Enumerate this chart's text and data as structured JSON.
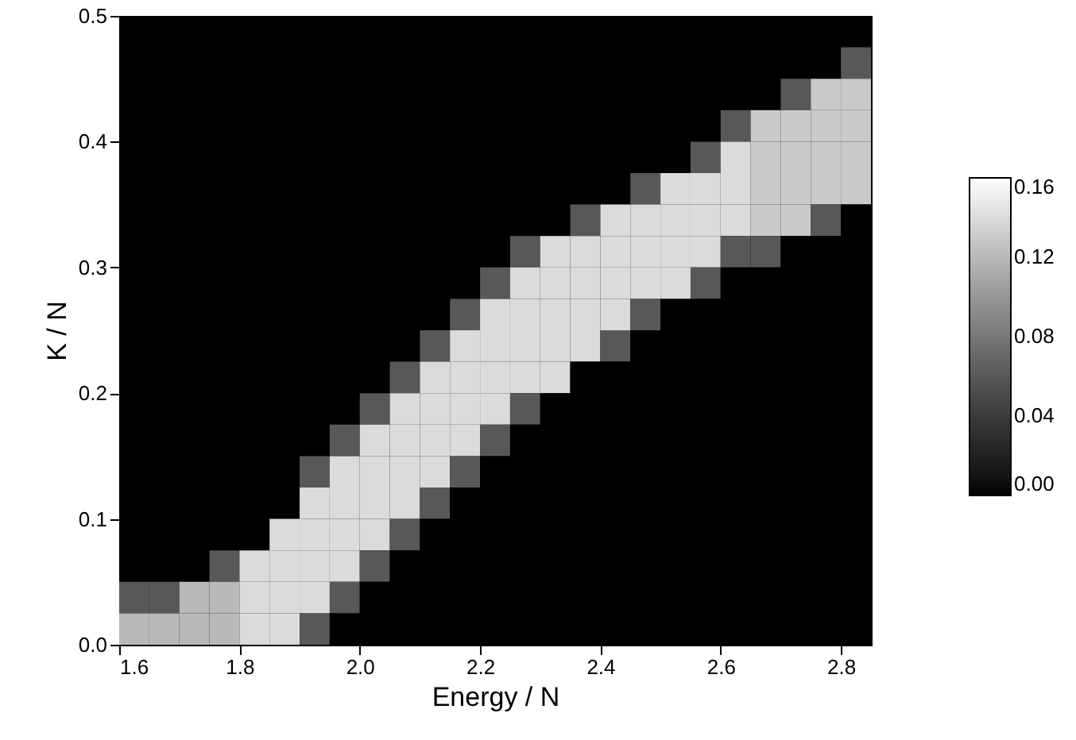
{
  "chart_data": {
    "type": "heatmap",
    "xlabel": "Energy / N",
    "ylabel": "K / N",
    "x": [
      1.625,
      1.675,
      1.725,
      1.775,
      1.825,
      1.875,
      1.925,
      1.975,
      2.025,
      2.075,
      2.125,
      2.175,
      2.225,
      2.275,
      2.325,
      2.375,
      2.425,
      2.475,
      2.525,
      2.575,
      2.625,
      2.675,
      2.725,
      2.775,
      2.825
    ],
    "y": [
      0.4875,
      0.4625,
      0.4375,
      0.4125,
      0.3875,
      0.3625,
      0.3375,
      0.3125,
      0.2875,
      0.2625,
      0.2375,
      0.2125,
      0.1875,
      0.1625,
      0.1375,
      0.1125,
      0.0875,
      0.0625,
      0.0375,
      0.0125
    ],
    "cells": [
      [
        0,
        0,
        0,
        0,
        0,
        0,
        0,
        0,
        0,
        0,
        0,
        0,
        0,
        0,
        0,
        0,
        0,
        0,
        0,
        0,
        0,
        0,
        0,
        0,
        0
      ],
      [
        0,
        0,
        0,
        0,
        0,
        0,
        0,
        0,
        0,
        0,
        0,
        0,
        0,
        0,
        0,
        0,
        0,
        0,
        0,
        0,
        0,
        0,
        0,
        0,
        0.06
      ],
      [
        0,
        0,
        0,
        0,
        0,
        0,
        0,
        0,
        0,
        0,
        0,
        0,
        0,
        0,
        0,
        0,
        0,
        0,
        0,
        0,
        0,
        0,
        0.06,
        0.13,
        0.13
      ],
      [
        0,
        0,
        0,
        0,
        0,
        0,
        0,
        0,
        0,
        0,
        0,
        0,
        0,
        0,
        0,
        0,
        0,
        0,
        0,
        0,
        0.06,
        0.13,
        0.13,
        0.13,
        0.13
      ],
      [
        0,
        0,
        0,
        0,
        0,
        0,
        0,
        0,
        0,
        0,
        0,
        0,
        0,
        0,
        0,
        0,
        0,
        0,
        0,
        0.06,
        0.14,
        0.13,
        0.13,
        0.13,
        0.13
      ],
      [
        0,
        0,
        0,
        0,
        0,
        0,
        0,
        0,
        0,
        0,
        0,
        0,
        0,
        0,
        0,
        0,
        0,
        0.06,
        0.14,
        0.14,
        0.14,
        0.13,
        0.13,
        0.13,
        0.13
      ],
      [
        0,
        0,
        0,
        0,
        0,
        0,
        0,
        0,
        0,
        0,
        0,
        0,
        0,
        0,
        0,
        0.06,
        0.14,
        0.14,
        0.14,
        0.14,
        0.14,
        0.13,
        0.13,
        0.06,
        0
      ],
      [
        0,
        0,
        0,
        0,
        0,
        0,
        0,
        0,
        0,
        0,
        0,
        0,
        0,
        0.06,
        0.14,
        0.14,
        0.14,
        0.14,
        0.14,
        0.14,
        0.06,
        0.06,
        0,
        0,
        0
      ],
      [
        0,
        0,
        0,
        0,
        0,
        0,
        0,
        0,
        0,
        0,
        0,
        0,
        0.06,
        0.14,
        0.14,
        0.14,
        0.14,
        0.14,
        0.14,
        0.06,
        0,
        0,
        0,
        0,
        0
      ],
      [
        0,
        0,
        0,
        0,
        0,
        0,
        0,
        0,
        0,
        0,
        0,
        0.06,
        0.14,
        0.14,
        0.14,
        0.14,
        0.14,
        0.06,
        0,
        0,
        0,
        0,
        0,
        0,
        0
      ],
      [
        0,
        0,
        0,
        0,
        0,
        0,
        0,
        0,
        0,
        0,
        0.06,
        0.14,
        0.14,
        0.14,
        0.14,
        0.14,
        0.06,
        0,
        0,
        0,
        0,
        0,
        0,
        0,
        0
      ],
      [
        0,
        0,
        0,
        0,
        0,
        0,
        0,
        0,
        0,
        0.06,
        0.14,
        0.14,
        0.14,
        0.14,
        0.14,
        0,
        0,
        0,
        0,
        0,
        0,
        0,
        0,
        0,
        0
      ],
      [
        0,
        0,
        0,
        0,
        0,
        0,
        0,
        0,
        0.06,
        0.14,
        0.14,
        0.14,
        0.14,
        0.06,
        0,
        0,
        0,
        0,
        0,
        0,
        0,
        0,
        0,
        0,
        0
      ],
      [
        0,
        0,
        0,
        0,
        0,
        0,
        0,
        0.06,
        0.14,
        0.14,
        0.14,
        0.14,
        0.06,
        0,
        0,
        0,
        0,
        0,
        0,
        0,
        0,
        0,
        0,
        0,
        0
      ],
      [
        0,
        0,
        0,
        0,
        0,
        0,
        0.06,
        0.14,
        0.14,
        0.14,
        0.14,
        0.06,
        0,
        0,
        0,
        0,
        0,
        0,
        0,
        0,
        0,
        0,
        0,
        0,
        0
      ],
      [
        0,
        0,
        0,
        0,
        0,
        0,
        0.14,
        0.14,
        0.14,
        0.14,
        0.06,
        0,
        0,
        0,
        0,
        0,
        0,
        0,
        0,
        0,
        0,
        0,
        0,
        0,
        0
      ],
      [
        0,
        0,
        0,
        0,
        0,
        0.14,
        0.14,
        0.14,
        0.14,
        0.06,
        0,
        0,
        0,
        0,
        0,
        0,
        0,
        0,
        0,
        0,
        0,
        0,
        0,
        0,
        0
      ],
      [
        0,
        0,
        0,
        0.06,
        0.14,
        0.14,
        0.14,
        0.14,
        0.06,
        0,
        0,
        0,
        0,
        0,
        0,
        0,
        0,
        0,
        0,
        0,
        0,
        0,
        0,
        0,
        0
      ],
      [
        0.06,
        0.06,
        0.12,
        0.12,
        0.14,
        0.14,
        0.14,
        0.06,
        0,
        0,
        0,
        0,
        0,
        0,
        0,
        0,
        0,
        0,
        0,
        0,
        0,
        0,
        0,
        0,
        0
      ],
      [
        0.12,
        0.12,
        0.12,
        0.12,
        0.14,
        0.14,
        0.06,
        0,
        0,
        0,
        0,
        0,
        0,
        0,
        0,
        0,
        0,
        0,
        0,
        0,
        0,
        0,
        0,
        0,
        0
      ]
    ],
    "xlim": [
      1.6,
      2.85
    ],
    "xticks": [
      {
        "value": 1.6,
        "label": "1.6"
      },
      {
        "value": 1.8,
        "label": "1.8"
      },
      {
        "value": 2.0,
        "label": "2.0"
      },
      {
        "value": 2.2,
        "label": "2.2"
      },
      {
        "value": 2.4,
        "label": "2.4"
      },
      {
        "value": 2.6,
        "label": "2.6"
      },
      {
        "value": 2.8,
        "label": "2.8"
      }
    ],
    "ylim": [
      0,
      0.5
    ],
    "yticks": [
      {
        "value": 0,
        "label": "0.0"
      },
      {
        "value": 0.1,
        "label": "0.1"
      },
      {
        "value": 0.2,
        "label": "0.2"
      },
      {
        "value": 0.3,
        "label": "0.3"
      },
      {
        "value": 0.4,
        "label": "0.4"
      },
      {
        "value": 0.5,
        "label": "0.5"
      }
    ],
    "clim": [
      0,
      0.16
    ],
    "cticks": [
      {
        "value": 0,
        "label": "0.00"
      },
      {
        "value": 0.04,
        "label": "0.04"
      },
      {
        "value": 0.08,
        "label": "0.08"
      },
      {
        "value": 0.12,
        "label": "0.12"
      },
      {
        "value": 0.16,
        "label": "0.16"
      }
    ],
    "colors": [
      "#000000",
      "#ffffff"
    ],
    "grid": false
  }
}
